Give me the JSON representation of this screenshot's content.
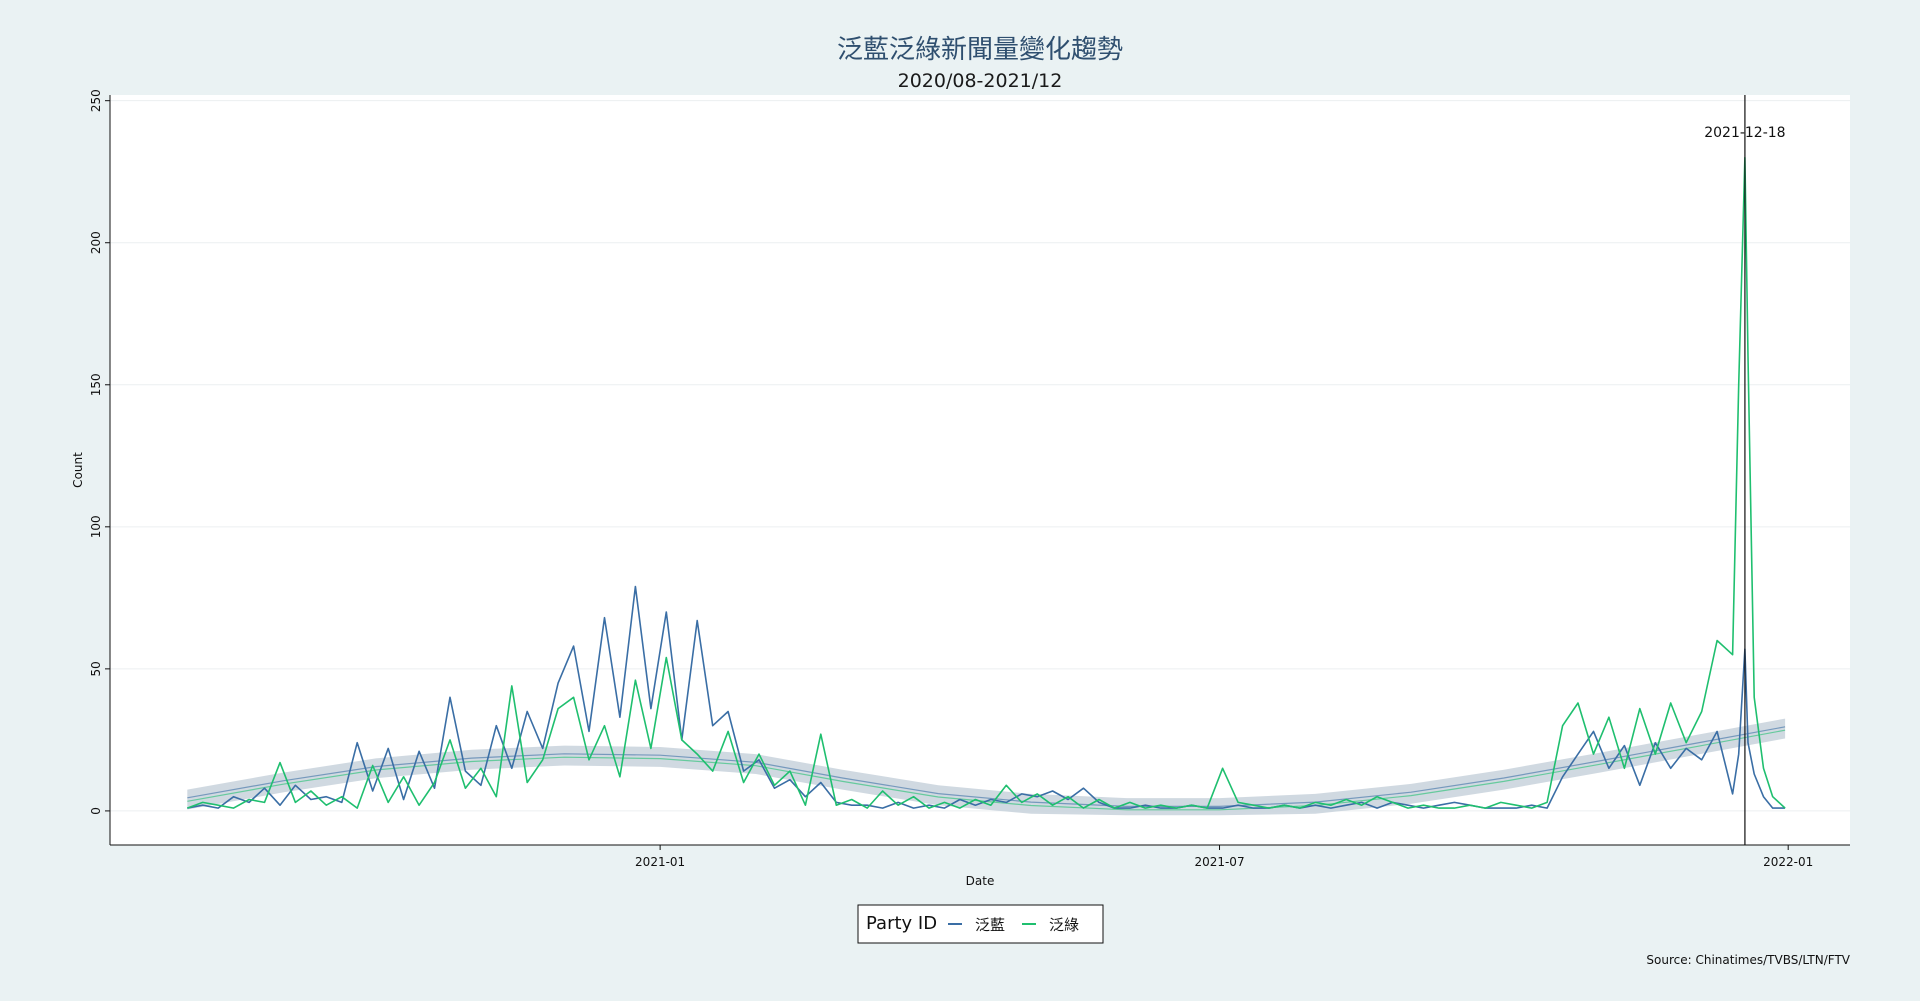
{
  "chart_data": {
    "type": "line",
    "title": "泛藍泛綠新聞量變化趨勢",
    "subtitle": "2020/08-2021/12",
    "xlabel": "Date",
    "ylabel": "Count",
    "ylim": [
      -12,
      252
    ],
    "xlim": [
      "2020-07-07",
      "2022-01-21"
    ],
    "x_ticks": [
      "2021-01-01",
      "2021-07-01",
      "2022-01-01"
    ],
    "x_tick_labels": [
      "2021-01",
      "2021-07",
      "2022-01"
    ],
    "y_ticks": [
      0,
      50,
      100,
      150,
      200,
      250
    ],
    "grid": "horizontal",
    "legend": {
      "title": "Party ID",
      "position": "bottom-center"
    },
    "annotation": {
      "date": "2021-12-18",
      "label": "2021-12-18"
    },
    "source": "Source: Chinatimes/TVBS/LTN/FTV",
    "trend_band_color": "#c8d2dc",
    "series": [
      {
        "name": "泛藍",
        "color": "#3a6ea5",
        "points": [
          [
            "2020-08-01",
            1
          ],
          [
            "2020-08-06",
            2
          ],
          [
            "2020-08-11",
            1
          ],
          [
            "2020-08-16",
            5
          ],
          [
            "2020-08-21",
            3
          ],
          [
            "2020-08-26",
            8
          ],
          [
            "2020-08-31",
            2
          ],
          [
            "2020-09-05",
            9
          ],
          [
            "2020-09-10",
            4
          ],
          [
            "2020-09-15",
            5
          ],
          [
            "2020-09-20",
            3
          ],
          [
            "2020-09-25",
            24
          ],
          [
            "2020-09-30",
            7
          ],
          [
            "2020-10-05",
            22
          ],
          [
            "2020-10-10",
            4
          ],
          [
            "2020-10-15",
            21
          ],
          [
            "2020-10-20",
            8
          ],
          [
            "2020-10-25",
            40
          ],
          [
            "2020-10-30",
            14
          ],
          [
            "2020-11-04",
            9
          ],
          [
            "2020-11-09",
            30
          ],
          [
            "2020-11-14",
            15
          ],
          [
            "2020-11-19",
            35
          ],
          [
            "2020-11-24",
            22
          ],
          [
            "2020-11-29",
            45
          ],
          [
            "2020-12-04",
            58
          ],
          [
            "2020-12-09",
            28
          ],
          [
            "2020-12-14",
            68
          ],
          [
            "2020-12-19",
            33
          ],
          [
            "2020-12-24",
            79
          ],
          [
            "2020-12-29",
            36
          ],
          [
            "2021-01-03",
            70
          ],
          [
            "2021-01-08",
            25
          ],
          [
            "2021-01-13",
            67
          ],
          [
            "2021-01-18",
            30
          ],
          [
            "2021-01-23",
            35
          ],
          [
            "2021-01-28",
            14
          ],
          [
            "2021-02-02",
            18
          ],
          [
            "2021-02-07",
            8
          ],
          [
            "2021-02-12",
            11
          ],
          [
            "2021-02-17",
            5
          ],
          [
            "2021-02-22",
            10
          ],
          [
            "2021-02-27",
            3
          ],
          [
            "2021-03-04",
            2
          ],
          [
            "2021-03-09",
            2
          ],
          [
            "2021-03-14",
            1
          ],
          [
            "2021-03-19",
            3
          ],
          [
            "2021-03-24",
            1
          ],
          [
            "2021-03-29",
            2
          ],
          [
            "2021-04-03",
            1
          ],
          [
            "2021-04-08",
            4
          ],
          [
            "2021-04-13",
            2
          ],
          [
            "2021-04-18",
            4
          ],
          [
            "2021-04-23",
            3
          ],
          [
            "2021-04-28",
            6
          ],
          [
            "2021-05-03",
            5
          ],
          [
            "2021-05-08",
            7
          ],
          [
            "2021-05-13",
            4
          ],
          [
            "2021-05-18",
            8
          ],
          [
            "2021-05-23",
            3
          ],
          [
            "2021-05-28",
            1
          ],
          [
            "2021-06-02",
            1
          ],
          [
            "2021-06-07",
            2
          ],
          [
            "2021-06-12",
            1
          ],
          [
            "2021-06-17",
            1
          ],
          [
            "2021-06-22",
            2
          ],
          [
            "2021-06-27",
            1
          ],
          [
            "2021-07-02",
            1
          ],
          [
            "2021-07-07",
            2
          ],
          [
            "2021-07-12",
            1
          ],
          [
            "2021-07-17",
            1
          ],
          [
            "2021-07-22",
            2
          ],
          [
            "2021-07-27",
            1
          ],
          [
            "2021-08-01",
            2
          ],
          [
            "2021-08-06",
            1
          ],
          [
            "2021-08-11",
            2
          ],
          [
            "2021-08-16",
            3
          ],
          [
            "2021-08-21",
            1
          ],
          [
            "2021-08-26",
            3
          ],
          [
            "2021-08-31",
            2
          ],
          [
            "2021-09-05",
            1
          ],
          [
            "2021-09-10",
            2
          ],
          [
            "2021-09-15",
            3
          ],
          [
            "2021-09-20",
            2
          ],
          [
            "2021-09-25",
            1
          ],
          [
            "2021-09-30",
            1
          ],
          [
            "2021-10-05",
            1
          ],
          [
            "2021-10-10",
            2
          ],
          [
            "2021-10-15",
            1
          ],
          [
            "2021-10-20",
            12
          ],
          [
            "2021-10-25",
            20
          ],
          [
            "2021-10-30",
            28
          ],
          [
            "2021-11-04",
            15
          ],
          [
            "2021-11-09",
            23
          ],
          [
            "2021-11-14",
            9
          ],
          [
            "2021-11-19",
            24
          ],
          [
            "2021-11-24",
            15
          ],
          [
            "2021-11-29",
            22
          ],
          [
            "2021-12-04",
            18
          ],
          [
            "2021-12-09",
            28
          ],
          [
            "2021-12-14",
            6
          ],
          [
            "2021-12-16",
            20
          ],
          [
            "2021-12-18",
            57
          ],
          [
            "2021-12-19",
            24
          ],
          [
            "2021-12-21",
            13
          ],
          [
            "2021-12-24",
            5
          ],
          [
            "2021-12-27",
            1
          ],
          [
            "2021-12-31",
            1
          ]
        ]
      },
      {
        "name": "泛綠",
        "color": "#1fbf6f",
        "points": [
          [
            "2020-08-01",
            1
          ],
          [
            "2020-08-06",
            3
          ],
          [
            "2020-08-11",
            2
          ],
          [
            "2020-08-16",
            1
          ],
          [
            "2020-08-21",
            4
          ],
          [
            "2020-08-26",
            3
          ],
          [
            "2020-08-31",
            17
          ],
          [
            "2020-09-05",
            3
          ],
          [
            "2020-09-10",
            7
          ],
          [
            "2020-09-15",
            2
          ],
          [
            "2020-09-20",
            5
          ],
          [
            "2020-09-25",
            1
          ],
          [
            "2020-09-30",
            16
          ],
          [
            "2020-10-05",
            3
          ],
          [
            "2020-10-10",
            12
          ],
          [
            "2020-10-15",
            2
          ],
          [
            "2020-10-20",
            10
          ],
          [
            "2020-10-25",
            25
          ],
          [
            "2020-10-30",
            8
          ],
          [
            "2020-11-04",
            15
          ],
          [
            "2020-11-09",
            5
          ],
          [
            "2020-11-14",
            44
          ],
          [
            "2020-11-19",
            10
          ],
          [
            "2020-11-24",
            18
          ],
          [
            "2020-11-29",
            36
          ],
          [
            "2020-12-04",
            40
          ],
          [
            "2020-12-09",
            18
          ],
          [
            "2020-12-14",
            30
          ],
          [
            "2020-12-19",
            12
          ],
          [
            "2020-12-24",
            46
          ],
          [
            "2020-12-29",
            22
          ],
          [
            "2021-01-03",
            54
          ],
          [
            "2021-01-08",
            25
          ],
          [
            "2021-01-13",
            20
          ],
          [
            "2021-01-18",
            14
          ],
          [
            "2021-01-23",
            28
          ],
          [
            "2021-01-28",
            10
          ],
          [
            "2021-02-02",
            20
          ],
          [
            "2021-02-07",
            9
          ],
          [
            "2021-02-12",
            14
          ],
          [
            "2021-02-17",
            2
          ],
          [
            "2021-02-22",
            27
          ],
          [
            "2021-02-27",
            2
          ],
          [
            "2021-03-04",
            4
          ],
          [
            "2021-03-09",
            1
          ],
          [
            "2021-03-14",
            7
          ],
          [
            "2021-03-19",
            2
          ],
          [
            "2021-03-24",
            5
          ],
          [
            "2021-03-29",
            1
          ],
          [
            "2021-04-03",
            3
          ],
          [
            "2021-04-08",
            1
          ],
          [
            "2021-04-13",
            4
          ],
          [
            "2021-04-18",
            2
          ],
          [
            "2021-04-23",
            9
          ],
          [
            "2021-04-28",
            3
          ],
          [
            "2021-05-03",
            6
          ],
          [
            "2021-05-08",
            2
          ],
          [
            "2021-05-13",
            5
          ],
          [
            "2021-05-18",
            1
          ],
          [
            "2021-05-23",
            4
          ],
          [
            "2021-05-28",
            1
          ],
          [
            "2021-06-02",
            3
          ],
          [
            "2021-06-07",
            1
          ],
          [
            "2021-06-12",
            2
          ],
          [
            "2021-06-17",
            1
          ],
          [
            "2021-06-22",
            2
          ],
          [
            "2021-06-27",
            1
          ],
          [
            "2021-07-02",
            15
          ],
          [
            "2021-07-07",
            3
          ],
          [
            "2021-07-12",
            2
          ],
          [
            "2021-07-17",
            1
          ],
          [
            "2021-07-22",
            2
          ],
          [
            "2021-07-27",
            1
          ],
          [
            "2021-08-01",
            3
          ],
          [
            "2021-08-06",
            2
          ],
          [
            "2021-08-11",
            4
          ],
          [
            "2021-08-16",
            2
          ],
          [
            "2021-08-21",
            5
          ],
          [
            "2021-08-26",
            3
          ],
          [
            "2021-08-31",
            1
          ],
          [
            "2021-09-05",
            2
          ],
          [
            "2021-09-10",
            1
          ],
          [
            "2021-09-15",
            1
          ],
          [
            "2021-09-20",
            2
          ],
          [
            "2021-09-25",
            1
          ],
          [
            "2021-09-30",
            3
          ],
          [
            "2021-10-05",
            2
          ],
          [
            "2021-10-10",
            1
          ],
          [
            "2021-10-15",
            3
          ],
          [
            "2021-10-20",
            30
          ],
          [
            "2021-10-25",
            38
          ],
          [
            "2021-10-30",
            20
          ],
          [
            "2021-11-04",
            33
          ],
          [
            "2021-11-09",
            15
          ],
          [
            "2021-11-14",
            36
          ],
          [
            "2021-11-19",
            20
          ],
          [
            "2021-11-24",
            38
          ],
          [
            "2021-11-29",
            24
          ],
          [
            "2021-12-04",
            35
          ],
          [
            "2021-12-09",
            60
          ],
          [
            "2021-12-14",
            55
          ],
          [
            "2021-12-16",
            150
          ],
          [
            "2021-12-18",
            230
          ],
          [
            "2021-12-19",
            160
          ],
          [
            "2021-12-21",
            40
          ],
          [
            "2021-12-24",
            15
          ],
          [
            "2021-12-27",
            5
          ],
          [
            "2021-12-31",
            1
          ]
        ]
      }
    ],
    "trend": [
      [
        "2020-08-01",
        4
      ],
      [
        "2020-09-01",
        10
      ],
      [
        "2020-10-01",
        15
      ],
      [
        "2020-11-01",
        18
      ],
      [
        "2020-12-01",
        19.5
      ],
      [
        "2021-01-01",
        19
      ],
      [
        "2021-02-01",
        16.5
      ],
      [
        "2021-03-01",
        11
      ],
      [
        "2021-04-01",
        5.5
      ],
      [
        "2021-05-01",
        2.5
      ],
      [
        "2021-06-01",
        1
      ],
      [
        "2021-07-01",
        1
      ],
      [
        "2021-08-01",
        2.5
      ],
      [
        "2021-09-01",
        6
      ],
      [
        "2021-10-01",
        11
      ],
      [
        "2021-11-01",
        17
      ],
      [
        "2021-12-01",
        23
      ],
      [
        "2021-12-31",
        29
      ]
    ]
  }
}
